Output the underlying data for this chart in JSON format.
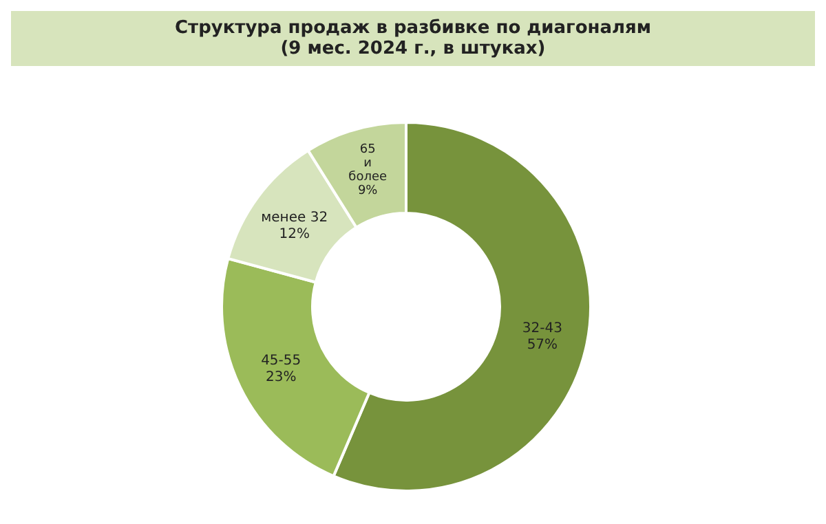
{
  "chart_data": {
    "type": "donut",
    "title": "Структура продаж в разбивке по диагоналям",
    "subtitle": "(9 мес. 2024 г., в штуках)",
    "categories": [
      "32-43",
      "45-55",
      "менее 32",
      "65 и более"
    ],
    "values": [
      57,
      23,
      12,
      9
    ],
    "value_labels": [
      "57%",
      "23%",
      "12%",
      "9%"
    ],
    "colors": [
      "#77933c",
      "#9bbb59",
      "#d7e4bd",
      "#c3d69b"
    ],
    "legend": false
  }
}
